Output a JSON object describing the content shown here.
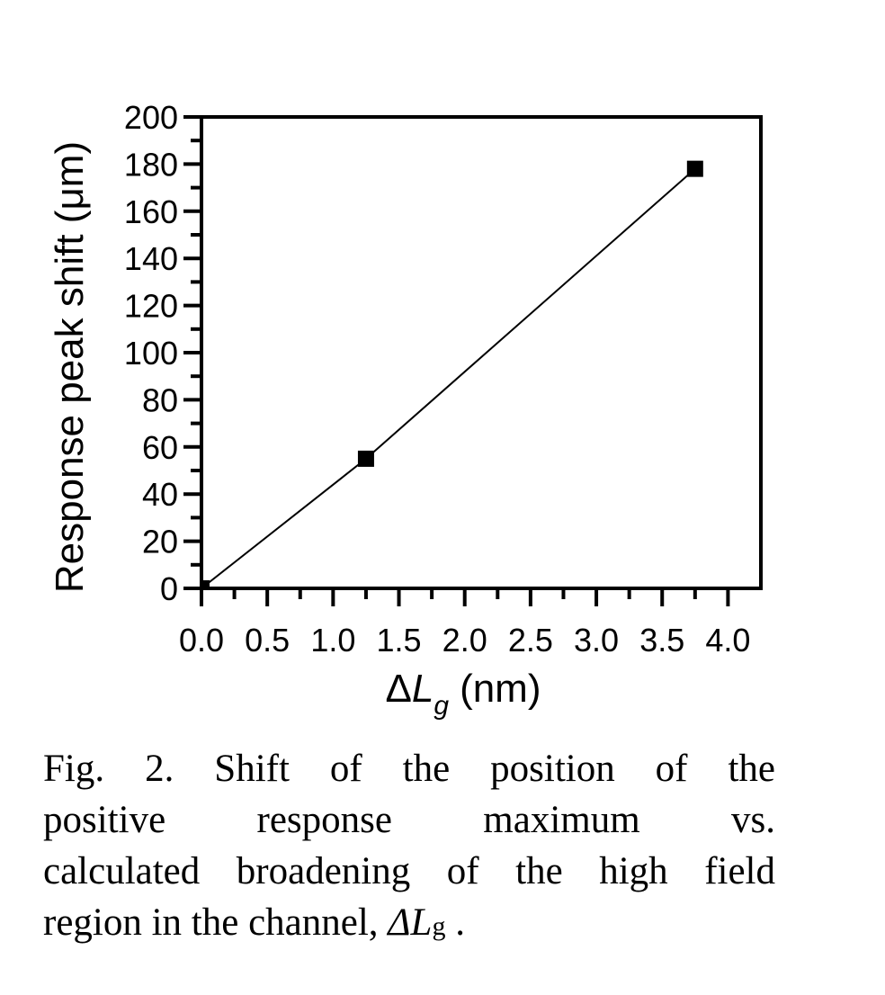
{
  "chart_data": {
    "type": "line",
    "markers": "square",
    "x": [
      0,
      1.25,
      3.75
    ],
    "series": [
      {
        "values": [
          0,
          55,
          178
        ]
      }
    ],
    "xlabel": {
      "delta": "Δ",
      "symbol": "L",
      "subscript": "g",
      "unit": "(nm)"
    },
    "ylabel": "Response peak shift (μm)",
    "xlim": [
      0,
      4.25
    ],
    "ylim": [
      0,
      200
    ],
    "xticks": [
      "0.0",
      "0.5",
      "1.0",
      "1.5",
      "2.0",
      "2.5",
      "3.0",
      "3.5",
      "4.0"
    ],
    "yticks": [
      "0",
      "20",
      "40",
      "60",
      "80",
      "100",
      "120",
      "140",
      "160",
      "180",
      "200"
    ],
    "grid": false,
    "colors": {
      "line": "#000000",
      "marker": "#000000"
    }
  },
  "caption": {
    "lines": [
      "Fig. 2. Shift of the position of the",
      "positive response maximum vs.",
      "calculated broadening of the high field"
    ],
    "last_line": {
      "text": "region in the channel, ",
      "symbol": "ΔL",
      "subscript": "g",
      "end": " ."
    }
  }
}
